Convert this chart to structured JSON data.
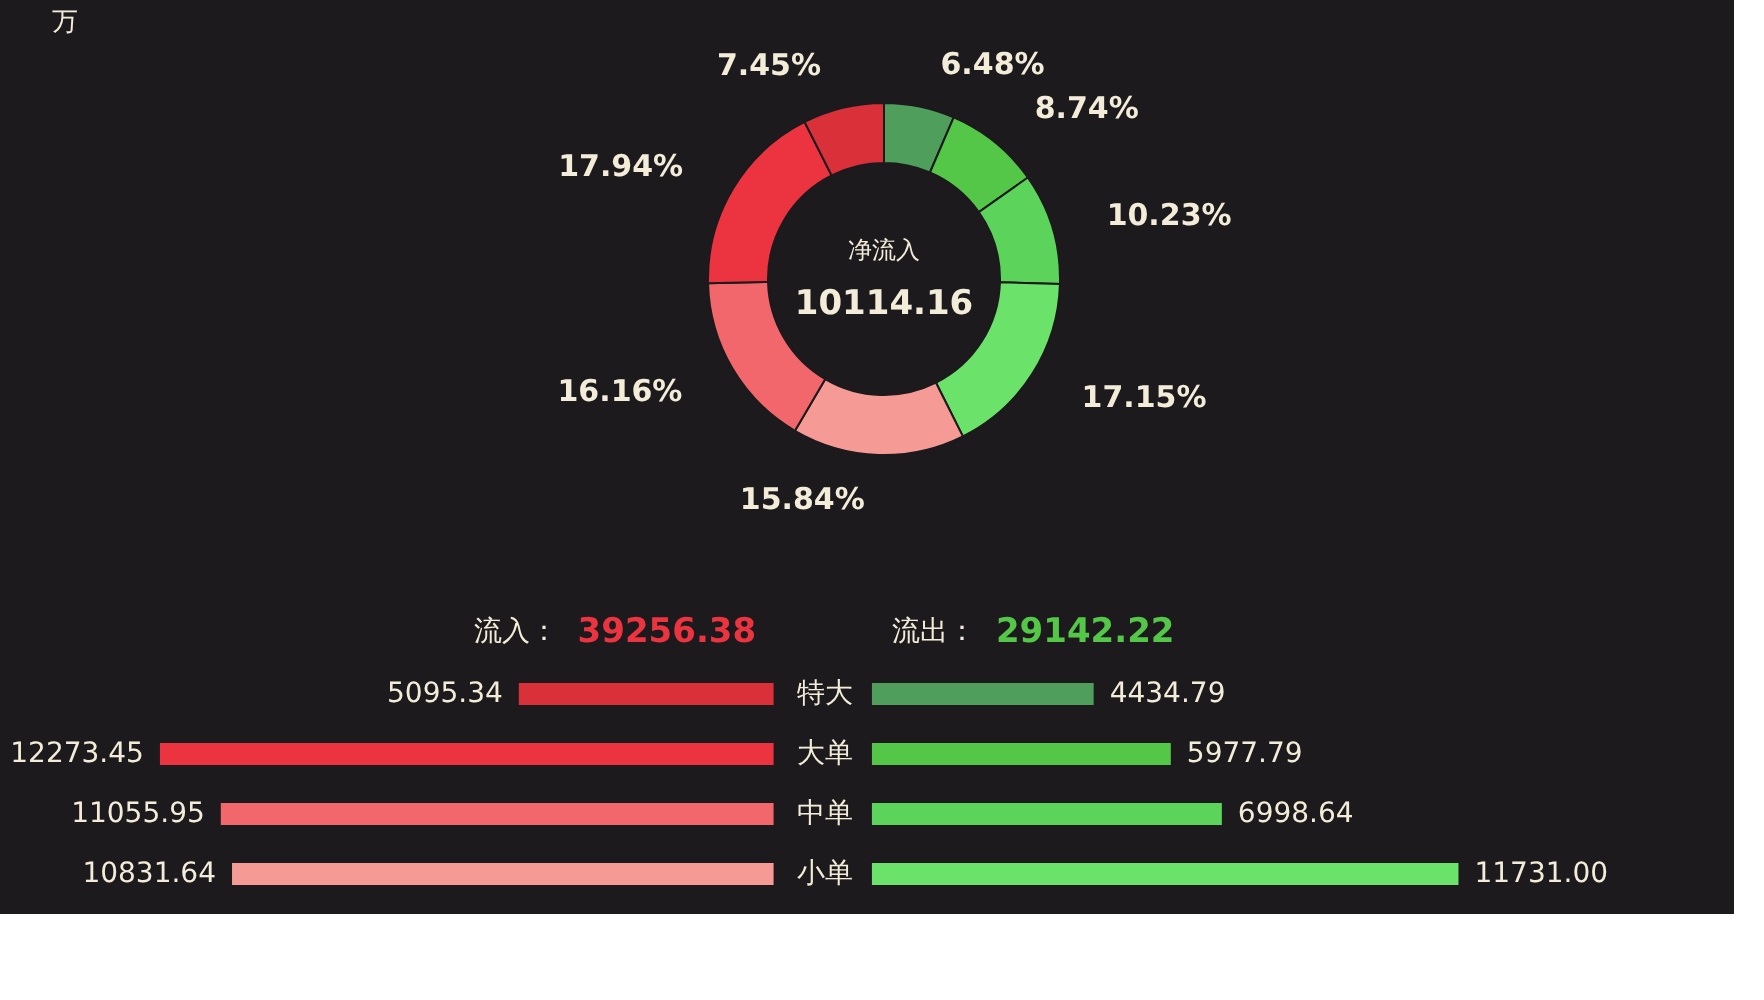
{
  "chart_data": [
    {
      "type": "donut",
      "annotations": [
        "万",
        "净流入",
        "10114.16"
      ],
      "categories": [
        null,
        null,
        null,
        null,
        null,
        null,
        null,
        null
      ],
      "values": [
        6.48,
        8.74,
        10.23,
        17.15,
        15.84,
        16.16,
        17.94,
        7.45
      ],
      "colors": [
        "#4f9e5c",
        "#55c748",
        "#5cd45c",
        "#6be36b",
        "#f59a94",
        "#f2676b",
        "#ec3340",
        "#d9303a"
      ],
      "value_labels": [
        "6.48%",
        "8.74%",
        "10.23%",
        "17.15%",
        "15.84%",
        "16.16%",
        "17.94%",
        "7.45%"
      ],
      "legend": false
    },
    {
      "type": "bar",
      "orientation": "horizontal",
      "title": "流入：",
      "subtitle": "39256.38",
      "categories": [
        "特大",
        "大单",
        "中单",
        "小单"
      ],
      "xlim": [
        12273.45,
        0
      ],
      "tick_labels": "y",
      "values": [
        5095.34,
        12273.45,
        11055.95,
        10831.64
      ],
      "colors": [
        "#d9303a",
        "#ec3340",
        "#f2676b",
        "#f59a94"
      ],
      "value_labels": [
        "5095.34",
        "12273.45",
        "11055.95",
        "10831.64"
      ],
      "grid": false
    },
    {
      "type": "bar",
      "orientation": "horizontal",
      "title": "流出：",
      "subtitle": "29142.22",
      "categories": [
        null,
        null,
        null,
        null
      ],
      "xlim": [
        0,
        11731.0
      ],
      "tick_labels": false,
      "values": [
        4434.79,
        5977.79,
        6998.64,
        11731.0
      ],
      "colors": [
        "#4f9e5c",
        "#55c748",
        "#5cd45c",
        "#6be36b"
      ],
      "value_labels": [
        "4434.79",
        "5977.79",
        "6998.64",
        "11731.00"
      ],
      "grid": false
    }
  ]
}
